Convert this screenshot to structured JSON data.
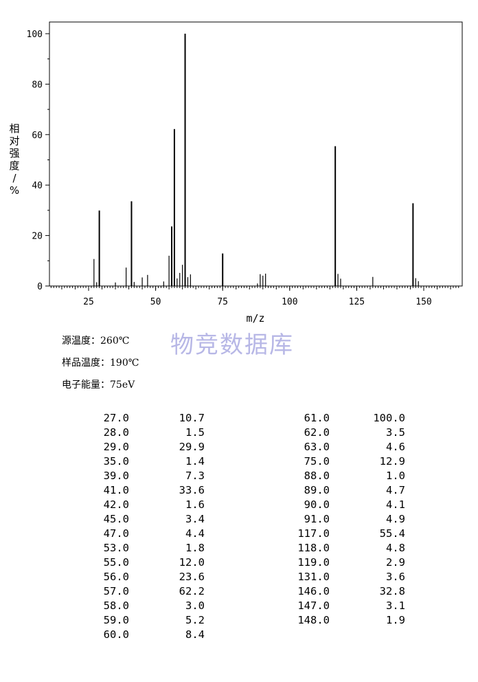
{
  "chart_data": {
    "type": "bar",
    "xlabel": "m/z",
    "ylabel": "相对强度/%",
    "xlim": [
      10,
      163
    ],
    "ylim": [
      0,
      105
    ],
    "xticks": [
      25,
      50,
      75,
      100,
      125,
      150
    ],
    "yticks": [
      0,
      20,
      40,
      60,
      80,
      100
    ],
    "grid": false,
    "peaks": [
      {
        "mz": 27.0,
        "abundance": 10.7
      },
      {
        "mz": 28.0,
        "abundance": 1.5
      },
      {
        "mz": 29.0,
        "abundance": 29.9
      },
      {
        "mz": 35.0,
        "abundance": 1.4
      },
      {
        "mz": 39.0,
        "abundance": 7.3
      },
      {
        "mz": 41.0,
        "abundance": 33.6
      },
      {
        "mz": 42.0,
        "abundance": 1.6
      },
      {
        "mz": 45.0,
        "abundance": 3.4
      },
      {
        "mz": 47.0,
        "abundance": 4.4
      },
      {
        "mz": 53.0,
        "abundance": 1.8
      },
      {
        "mz": 55.0,
        "abundance": 12.0
      },
      {
        "mz": 56.0,
        "abundance": 23.6
      },
      {
        "mz": 57.0,
        "abundance": 62.2
      },
      {
        "mz": 58.0,
        "abundance": 3.0
      },
      {
        "mz": 59.0,
        "abundance": 5.2
      },
      {
        "mz": 60.0,
        "abundance": 8.4
      },
      {
        "mz": 61.0,
        "abundance": 100.0
      },
      {
        "mz": 62.0,
        "abundance": 3.5
      },
      {
        "mz": 63.0,
        "abundance": 4.6
      },
      {
        "mz": 75.0,
        "abundance": 12.9
      },
      {
        "mz": 88.0,
        "abundance": 1.0
      },
      {
        "mz": 89.0,
        "abundance": 4.7
      },
      {
        "mz": 90.0,
        "abundance": 4.1
      },
      {
        "mz": 91.0,
        "abundance": 4.9
      },
      {
        "mz": 117.0,
        "abundance": 55.4
      },
      {
        "mz": 118.0,
        "abundance": 4.8
      },
      {
        "mz": 119.0,
        "abundance": 2.9
      },
      {
        "mz": 131.0,
        "abundance": 3.6
      },
      {
        "mz": 146.0,
        "abundance": 32.8
      },
      {
        "mz": 147.0,
        "abundance": 3.1
      },
      {
        "mz": 148.0,
        "abundance": 1.9
      }
    ]
  },
  "conditions": {
    "source_temp": "源温度：260℃",
    "sample_temp": "样品温度：190℃",
    "electron_energy": "电子能量：75eV"
  },
  "watermark": "物竞数据库",
  "peak_table": {
    "left": [
      [
        "27.0",
        "10.7"
      ],
      [
        "28.0",
        "1.5"
      ],
      [
        "29.0",
        "29.9"
      ],
      [
        "35.0",
        "1.4"
      ],
      [
        "39.0",
        "7.3"
      ],
      [
        "41.0",
        "33.6"
      ],
      [
        "42.0",
        "1.6"
      ],
      [
        "45.0",
        "3.4"
      ],
      [
        "47.0",
        "4.4"
      ],
      [
        "53.0",
        "1.8"
      ],
      [
        "55.0",
        "12.0"
      ],
      [
        "56.0",
        "23.6"
      ],
      [
        "57.0",
        "62.2"
      ],
      [
        "58.0",
        "3.0"
      ],
      [
        "59.0",
        "5.2"
      ],
      [
        "60.0",
        "8.4"
      ]
    ],
    "right": [
      [
        "61.0",
        "100.0"
      ],
      [
        "62.0",
        "3.5"
      ],
      [
        "63.0",
        "4.6"
      ],
      [
        "75.0",
        "12.9"
      ],
      [
        "88.0",
        "1.0"
      ],
      [
        "89.0",
        "4.7"
      ],
      [
        "90.0",
        "4.1"
      ],
      [
        "91.0",
        "4.9"
      ],
      [
        "117.0",
        "55.4"
      ],
      [
        "118.0",
        "4.8"
      ],
      [
        "119.0",
        "2.9"
      ],
      [
        "131.0",
        "3.6"
      ],
      [
        "146.0",
        "32.8"
      ],
      [
        "147.0",
        "3.1"
      ],
      [
        "148.0",
        "1.9"
      ]
    ]
  }
}
